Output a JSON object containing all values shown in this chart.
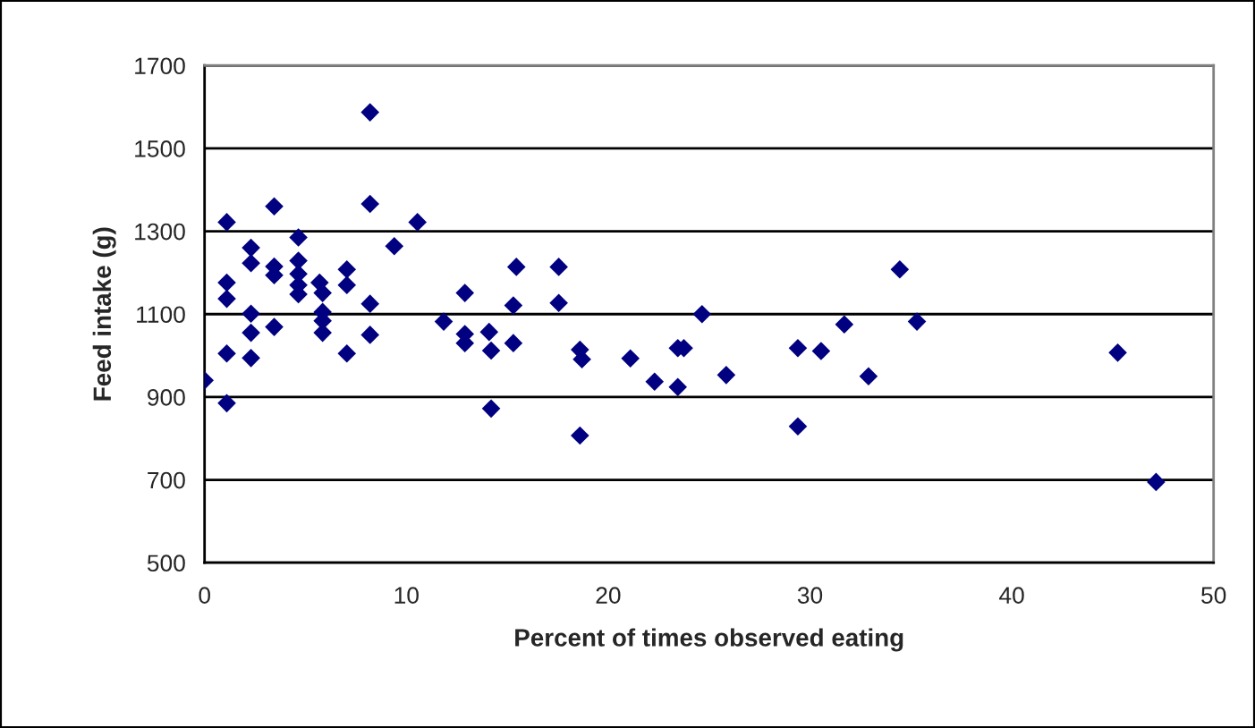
{
  "chart_data": {
    "type": "scatter",
    "xlabel": "Percent of times observed eating",
    "ylabel": "Feed intake (g)",
    "x": [
      0,
      1.1,
      1.1,
      1.1,
      1.1,
      1.1,
      2.3,
      2.3,
      2.3,
      2.3,
      2.3,
      3.45,
      3.45,
      3.45,
      3.45,
      4.65,
      4.65,
      4.65,
      4.65,
      4.65,
      5.7,
      5.85,
      5.85,
      5.85,
      5.85,
      7.05,
      7.05,
      7.05,
      8.2,
      8.2,
      8.2,
      8.2,
      9.4,
      10.55,
      11.85,
      12.9,
      12.9,
      12.9,
      14.1,
      14.2,
      14.2,
      15.45,
      15.3,
      15.3,
      17.55,
      17.55,
      18.6,
      18.7,
      18.6,
      21.1,
      22.3,
      23.45,
      23.45,
      23.75,
      24.65,
      25.85,
      29.4,
      29.4,
      30.55,
      31.7,
      32.9,
      34.45,
      35.3,
      45.25,
      47.15
    ],
    "values": [
      940,
      1322,
      1176,
      1137,
      1005,
      885,
      1260,
      1223,
      1101,
      1055,
      994,
      1360,
      1215,
      1194,
      1069,
      1285,
      1229,
      1197,
      1170,
      1148,
      1176,
      1151,
      1105,
      1084,
      1055,
      1208,
      1170,
      1005,
      1587,
      1366,
      1125,
      1050,
      1264,
      1322,
      1082,
      1151,
      1052,
      1030,
      1057,
      1012,
      872,
      1214,
      1121,
      1030,
      1214,
      1127,
      1014,
      991,
      807,
      993,
      937,
      924,
      1018,
      1018,
      1100,
      953,
      1018,
      829,
      1011,
      1075,
      950,
      1208,
      1082,
      1007,
      695
    ],
    "color": "#000080",
    "marker": "diamond",
    "xlim": [
      0,
      50
    ],
    "xticks": [
      0,
      10,
      20,
      30,
      40,
      50
    ],
    "ylim": [
      500,
      1700
    ],
    "yticks": [
      500,
      700,
      900,
      1100,
      1300,
      1500,
      1700
    ],
    "grid": "y"
  }
}
